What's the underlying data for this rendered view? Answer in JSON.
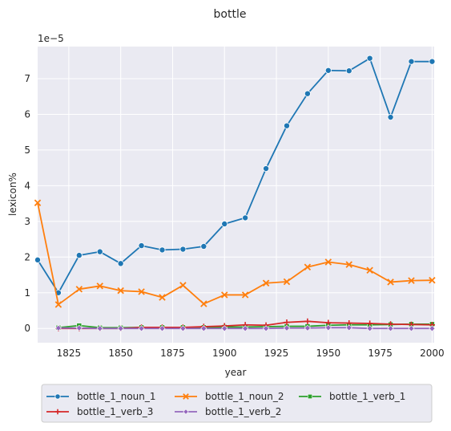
{
  "chart_data": {
    "type": "line",
    "title": "bottle",
    "xlabel": "year",
    "ylabel": "lexicon%",
    "y_offset_text": "1e−5",
    "xlim": [
      1810,
      2001
    ],
    "ylim": [
      -0.4,
      7.9
    ],
    "x_ticks": [
      1825,
      1850,
      1875,
      1900,
      1925,
      1950,
      1975,
      2000
    ],
    "y_ticks": [
      0,
      1,
      2,
      3,
      4,
      5,
      6,
      7
    ],
    "grid": true,
    "legend_position": "bottom",
    "background": "#eaeaf2",
    "series": [
      {
        "name": "bottle_1_noun_1",
        "color": "#1f77b4",
        "marker": "circle",
        "x": [
          1810,
          1820,
          1830,
          1840,
          1850,
          1860,
          1870,
          1880,
          1890,
          1900,
          1910,
          1920,
          1930,
          1940,
          1950,
          1960,
          1970,
          1980,
          1990,
          2000
        ],
        "values": [
          1.92,
          1.0,
          2.05,
          2.15,
          1.82,
          2.32,
          2.2,
          2.22,
          2.3,
          2.93,
          3.1,
          4.48,
          5.68,
          6.58,
          7.23,
          7.22,
          7.57,
          5.92,
          7.48,
          7.48
        ]
      },
      {
        "name": "bottle_1_noun_2",
        "color": "#ff7f0e",
        "marker": "x",
        "x": [
          1810,
          1820,
          1830,
          1840,
          1850,
          1860,
          1870,
          1880,
          1890,
          1900,
          1910,
          1920,
          1930,
          1940,
          1950,
          1960,
          1970,
          1980,
          1990,
          2000
        ],
        "values": [
          3.52,
          0.67,
          1.1,
          1.19,
          1.06,
          1.03,
          0.87,
          1.21,
          0.69,
          0.94,
          0.94,
          1.27,
          1.31,
          1.72,
          1.86,
          1.79,
          1.63,
          1.3,
          1.34,
          1.35
        ]
      },
      {
        "name": "bottle_1_verb_1",
        "color": "#2ca02c",
        "marker": "square",
        "x": [
          1820,
          1830,
          1840,
          1850,
          1860,
          1870,
          1880,
          1890,
          1900,
          1910,
          1920,
          1930,
          1940,
          1950,
          1960,
          1970,
          1980,
          1990,
          2000
        ],
        "values": [
          0.02,
          0.08,
          0.02,
          0.02,
          0.03,
          0.03,
          0.03,
          0.03,
          0.04,
          0.04,
          0.05,
          0.06,
          0.06,
          0.09,
          0.1,
          0.1,
          0.11,
          0.12,
          0.12
        ]
      },
      {
        "name": "bottle_1_verb_3",
        "color": "#d62728",
        "marker": "plus",
        "x": [
          1820,
          1830,
          1840,
          1850,
          1860,
          1870,
          1880,
          1890,
          1900,
          1910,
          1920,
          1930,
          1940,
          1950,
          1960,
          1970,
          1980,
          1990,
          2000
        ],
        "values": [
          0.0,
          0.0,
          0.0,
          0.0,
          0.03,
          0.03,
          0.03,
          0.05,
          0.07,
          0.1,
          0.09,
          0.17,
          0.2,
          0.16,
          0.15,
          0.14,
          0.12,
          0.11,
          0.1
        ]
      },
      {
        "name": "bottle_1_verb_2",
        "color": "#9467bd",
        "marker": "diamond",
        "x": [
          1820,
          1830,
          1840,
          1850,
          1860,
          1870,
          1880,
          1890,
          1900,
          1910,
          1920,
          1930,
          1940,
          1950,
          1960,
          1970,
          1980,
          1990,
          2000
        ],
        "values": [
          0.01,
          0.01,
          0.0,
          0.0,
          0.0,
          0.0,
          0.0,
          0.0,
          0.0,
          0.0,
          0.0,
          0.01,
          0.01,
          0.02,
          0.02,
          0.0,
          0.0,
          0.0,
          0.0
        ]
      }
    ]
  }
}
